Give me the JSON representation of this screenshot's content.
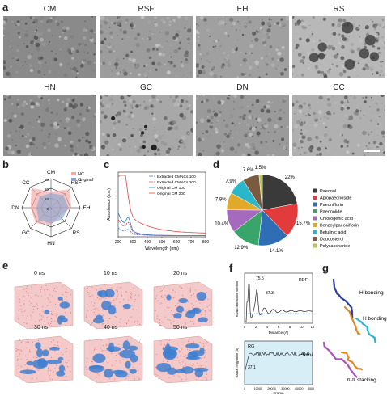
{
  "panel_labels": {
    "a": "a",
    "b": "b",
    "c": "c",
    "d": "d",
    "e": "e",
    "f": "f",
    "g": "g"
  },
  "tem_titles": [
    "CM",
    "RSF",
    "EH",
    "RS",
    "HN",
    "GC",
    "DN",
    "CC"
  ],
  "panel_b": {
    "axes": [
      "CM",
      "RSF",
      "EH",
      "RS",
      "HN",
      "GC",
      "DN",
      "CC"
    ],
    "ticks": [
      "30",
      "20",
      "10",
      "0"
    ],
    "legend": [
      "NC",
      "Original"
    ],
    "colors": {
      "NC": "#f4a6a6",
      "Original": "#8aa6cf"
    }
  },
  "panel_c": {
    "ylabel": "Absorbance (a.u.)",
    "xlabel": "Wavelength (nm)",
    "xticks": [
      "200",
      "300",
      "400",
      "500",
      "600",
      "700",
      "800"
    ],
    "legend": [
      "Extracted CMNCs 100",
      "Extracted CMNCs 200",
      "Original CM 100",
      "Original CM 200"
    ]
  },
  "chart_data": [
    {
      "type": "pie",
      "categories": [
        "Paeonol",
        "Apiopaeonoside",
        "Paeoniflorin",
        "Paeonolide",
        "Chlorogenic acid",
        "Benzoylpaeoniflorin",
        "Betulinic acid",
        "Daucosterol",
        "Polysaccharide"
      ],
      "values": [
        22,
        15.7,
        14.1,
        12.9,
        10.4,
        7.9,
        7.9,
        7.6,
        1.5
      ],
      "labels": [
        "22%",
        "15.7%",
        "14.1%",
        "12.9%",
        "10.4%",
        "7.9%",
        "7.9%",
        "7.6%",
        "1.5%"
      ],
      "colors": [
        "#3a3a3a",
        "#e23b3b",
        "#2f6db5",
        "#3aa56b",
        "#a569bd",
        "#e0a92a",
        "#2bb6c9",
        "#7a5b3f",
        "#b8c94a"
      ]
    }
  ],
  "panel_e": {
    "times": [
      "0 ns",
      "10 ns",
      "20 ns",
      "30 ns",
      "40 ns",
      "50 ns"
    ]
  },
  "panel_f": {
    "rdf": {
      "title": "RDF",
      "ylabel": "Radial distribution function",
      "xlabel": "Distance (Å)",
      "xticks": [
        "0",
        "2",
        "4",
        "6",
        "8",
        "10",
        "12"
      ],
      "peak1": "75.5",
      "peak2": "37.3"
    },
    "rg": {
      "title": "RG",
      "ylabel": "Radius of gyration (Å)",
      "xlabel": "Frame",
      "xticks": [
        "0",
        "10000",
        "20000",
        "30000",
        "40000",
        "50000"
      ],
      "start": "37.1",
      "end": "41.8"
    }
  },
  "panel_g": {
    "labels": [
      "H bonding",
      "H bonding",
      "π-π stacking"
    ]
  }
}
